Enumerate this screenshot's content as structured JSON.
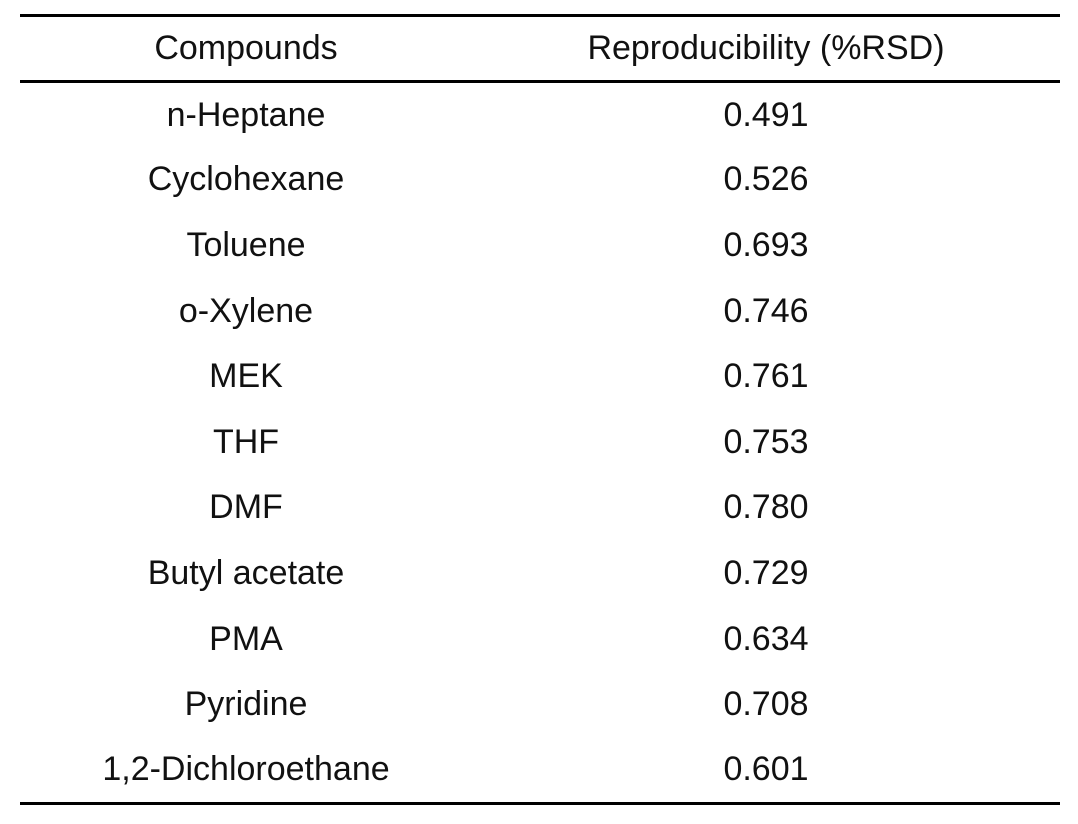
{
  "table": {
    "headers": {
      "compounds": "Compounds",
      "reproducibility": "Reproducibility (%RSD)"
    },
    "rows": [
      {
        "compound": "n-Heptane",
        "value": "0.491"
      },
      {
        "compound": "Cyclohexane",
        "value": "0.526"
      },
      {
        "compound": "Toluene",
        "value": "0.693"
      },
      {
        "compound": "o-Xylene",
        "value": "0.746"
      },
      {
        "compound": "MEK",
        "value": "0.761"
      },
      {
        "compound": "THF",
        "value": "0.753"
      },
      {
        "compound": "DMF",
        "value": "0.780"
      },
      {
        "compound": "Butyl acetate",
        "value": "0.729"
      },
      {
        "compound": "PMA",
        "value": "0.634"
      },
      {
        "compound": "Pyridine",
        "value": "0.708"
      },
      {
        "compound": "1,2-Dichloroethane",
        "value": "0.601"
      }
    ]
  }
}
